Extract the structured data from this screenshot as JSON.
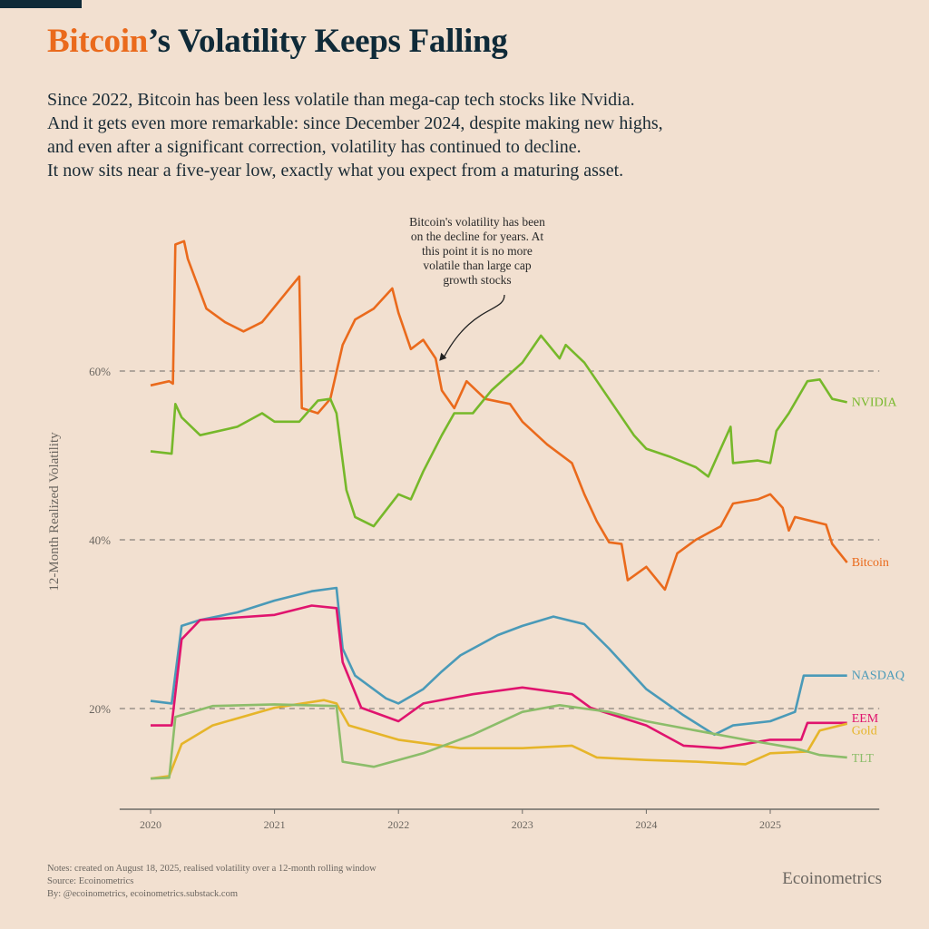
{
  "header": {
    "title_highlight": "Bitcoin",
    "title_rest": "’s Volatility Keeps Falling",
    "subtitle_lines": [
      "Since 2022, Bitcoin has been less volatile than mega-cap tech stocks like Nvidia.",
      "And it gets even more remarkable: since December 2024, despite making new highs,",
      "and even after a significant correction, volatility has continued to decline.",
      "It now sits near a five-year low, exactly what you expect from a maturing asset."
    ]
  },
  "footer": {
    "notes": "Notes: created on August 18, 2025, realised volatility over a 12-month rolling window",
    "source": "Source: Ecoinometrics",
    "by": "By: @ecoinometrics, ecoinometrics.substack.com",
    "brand": "Ecoinometrics"
  },
  "colors": {
    "background": "#f2e0d0",
    "title": "#0f2a38",
    "accent": "#ea6a1c"
  },
  "chart_data": {
    "type": "line",
    "title": "",
    "xlabel": "",
    "ylabel": "12-Month Realized Volatility",
    "xlim": [
      2019.75,
      2025.88
    ],
    "ylim": [
      8,
      80
    ],
    "x_ticks": [
      "2020",
      "2021",
      "2022",
      "2023",
      "2024",
      "2025"
    ],
    "y_ticks": [
      {
        "value": 20,
        "label": "20%"
      },
      {
        "value": 40,
        "label": "40%"
      },
      {
        "value": 60,
        "label": "60%"
      }
    ],
    "grid": "dashed horizontal at y ticks",
    "legend": "direct labels at right end of lines",
    "annotation": {
      "text_lines": [
        "Bitcoin's volatility has been",
        "on the decline for years. At",
        "this point it is no more",
        "volatile than large cap",
        "growth stocks"
      ],
      "points_to": {
        "x": 2022.33,
        "y": 61
      }
    },
    "series": [
      {
        "name": "Bitcoin",
        "color": "#ea6a1c",
        "x": [
          2020.0,
          2020.15,
          2020.18,
          2020.2,
          2020.27,
          2020.3,
          2020.45,
          2020.6,
          2020.75,
          2020.9,
          2021.05,
          2021.2,
          2021.22,
          2021.35,
          2021.45,
          2021.55,
          2021.65,
          2021.8,
          2021.95,
          2022.0,
          2022.1,
          2022.2,
          2022.3,
          2022.35,
          2022.45,
          2022.55,
          2022.7,
          2022.9,
          2023.0,
          2023.2,
          2023.4,
          2023.5,
          2023.6,
          2023.7,
          2023.8,
          2023.85,
          2024.0,
          2024.15,
          2024.25,
          2024.4,
          2024.6,
          2024.7,
          2024.9,
          2025.0,
          2025.1,
          2025.15,
          2025.2,
          2025.45,
          2025.5,
          2025.62
        ],
        "values": [
          58.3,
          58.8,
          58.5,
          75,
          75.4,
          73.3,
          67.4,
          65.8,
          64.7,
          65.8,
          68.5,
          71.2,
          55.6,
          55,
          56.7,
          63.1,
          66.1,
          67.4,
          69.8,
          66.9,
          62.6,
          63.7,
          61.5,
          57.7,
          55.6,
          58.8,
          56.7,
          56.1,
          54,
          51.3,
          49.1,
          45.4,
          42.2,
          39.7,
          39.5,
          35.2,
          36.8,
          34.1,
          38.4,
          40,
          41.6,
          44.3,
          44.8,
          45.4,
          43.8,
          41.1,
          42.7,
          41.8,
          39.5,
          37.3
        ]
      },
      {
        "name": "NVIDIA",
        "color": "#76b82a",
        "x": [
          2020.0,
          2020.17,
          2020.2,
          2020.25,
          2020.4,
          2020.7,
          2020.9,
          2021.0,
          2021.2,
          2021.35,
          2021.45,
          2021.5,
          2021.58,
          2021.65,
          2021.8,
          2022.0,
          2022.1,
          2022.2,
          2022.35,
          2022.45,
          2022.6,
          2022.75,
          2023.0,
          2023.15,
          2023.3,
          2023.35,
          2023.5,
          2023.7,
          2023.9,
          2024.0,
          2024.2,
          2024.4,
          2024.5,
          2024.6,
          2024.68,
          2024.7,
          2024.9,
          2025.0,
          2025.05,
          2025.15,
          2025.3,
          2025.4,
          2025.5,
          2025.62
        ],
        "values": [
          50.5,
          50.2,
          56.1,
          54.5,
          52.4,
          53.4,
          55,
          54,
          54,
          56.5,
          56.7,
          55,
          45.9,
          42.7,
          41.6,
          45.4,
          44.8,
          48.1,
          52.4,
          55,
          55,
          57.7,
          61,
          64.2,
          61.5,
          63.1,
          61,
          56.7,
          52.4,
          50.8,
          49.8,
          48.6,
          47.5,
          50.8,
          53.4,
          49.1,
          49.4,
          49.1,
          52.9,
          55,
          58.8,
          59,
          56.7,
          56.3
        ]
      },
      {
        "name": "NASDAQ",
        "color": "#4a9ab8",
        "x": [
          2020.0,
          2020.17,
          2020.25,
          2020.4,
          2020.7,
          2021.0,
          2021.3,
          2021.5,
          2021.55,
          2021.65,
          2021.9,
          2022.0,
          2022.2,
          2022.35,
          2022.5,
          2022.8,
          2023.0,
          2023.25,
          2023.5,
          2023.7,
          2024.0,
          2024.3,
          2024.55,
          2024.7,
          2025.0,
          2025.2,
          2025.27,
          2025.62
        ],
        "values": [
          20.9,
          20.6,
          29.8,
          30.5,
          31.4,
          32.8,
          33.9,
          34.3,
          27.1,
          23.9,
          21.2,
          20.6,
          22.3,
          24.4,
          26.3,
          28.7,
          29.8,
          30.9,
          30,
          27.1,
          22.3,
          19.2,
          16.9,
          18,
          18.5,
          19.6,
          23.9,
          23.9
        ]
      },
      {
        "name": "EEM",
        "color": "#e0146e",
        "x": [
          2020.0,
          2020.17,
          2020.25,
          2020.4,
          2021.0,
          2021.3,
          2021.5,
          2021.55,
          2021.7,
          2022.0,
          2022.2,
          2022.6,
          2023.0,
          2023.4,
          2023.55,
          2024.0,
          2024.3,
          2024.6,
          2025.0,
          2025.25,
          2025.3,
          2025.62
        ],
        "values": [
          18,
          18,
          28.2,
          30.5,
          31.1,
          32.2,
          31.9,
          25.5,
          20.1,
          18.5,
          20.6,
          21.7,
          22.5,
          21.7,
          20.1,
          18,
          15.6,
          15.3,
          16.3,
          16.3,
          18.3,
          18.3
        ]
      },
      {
        "name": "Gold",
        "color": "#e6b52a",
        "x": [
          2020.0,
          2020.15,
          2020.25,
          2020.5,
          2021.0,
          2021.4,
          2021.5,
          2021.6,
          2022.0,
          2022.5,
          2023.0,
          2023.4,
          2023.6,
          2024.0,
          2024.4,
          2024.8,
          2025.0,
          2025.3,
          2025.4,
          2025.62
        ],
        "values": [
          11.7,
          12,
          15.8,
          18,
          20.1,
          21,
          20.6,
          18,
          16.3,
          15.3,
          15.3,
          15.6,
          14.2,
          13.9,
          13.7,
          13.4,
          14.7,
          14.9,
          17.4,
          18.2
        ]
      },
      {
        "name": "TLT",
        "color": "#8cbd6a",
        "x": [
          2020.0,
          2020.15,
          2020.2,
          2020.5,
          2021.0,
          2021.5,
          2021.55,
          2021.8,
          2022.2,
          2022.6,
          2023.0,
          2023.3,
          2023.7,
          2024.0,
          2024.4,
          2024.8,
          2025.2,
          2025.4,
          2025.62
        ],
        "values": [
          11.7,
          11.8,
          19,
          20.3,
          20.5,
          20.3,
          13.7,
          13.1,
          14.7,
          16.9,
          19.6,
          20.4,
          19.6,
          18.5,
          17.4,
          16.3,
          15.3,
          14.5,
          14.2
        ]
      }
    ]
  }
}
